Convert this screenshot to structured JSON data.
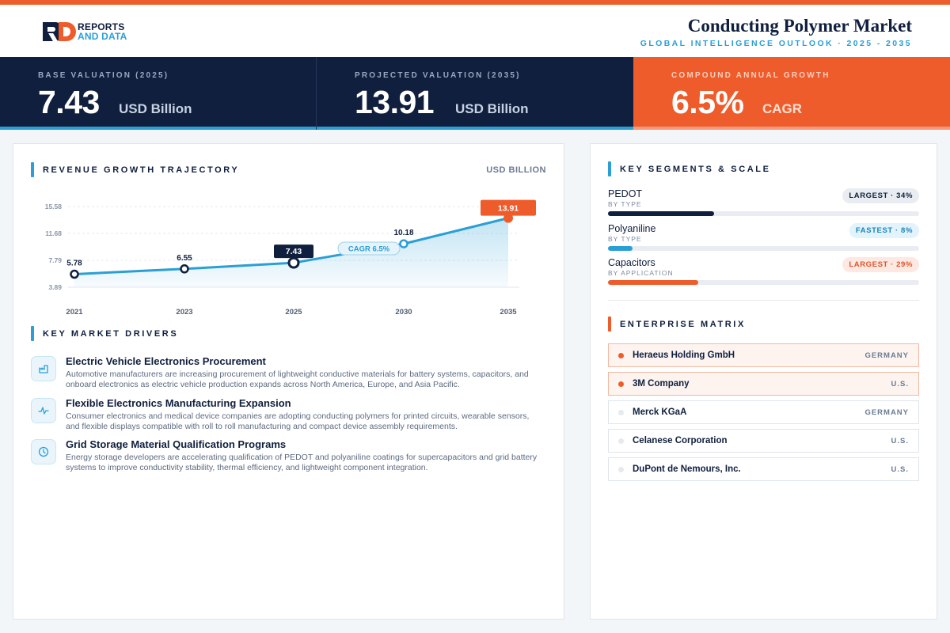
{
  "brand": {
    "logo_line1": "REPORTS",
    "logo_line2": "AND DATA"
  },
  "header": {
    "title": "Conducting Polymer Market",
    "subtitle": "GLOBAL INTELLIGENCE OUTLOOK  ·  2025 - 2035"
  },
  "kpis": [
    {
      "label": "BASE VALUATION (2025)",
      "value": "7.43",
      "unit": "USD Billion"
    },
    {
      "label": "PROJECTED VALUATION (2035)",
      "value": "13.91",
      "unit": "USD Billion"
    },
    {
      "label": "COMPOUND ANNUAL GROWTH",
      "value": "6.5%",
      "unit": "CAGR"
    }
  ],
  "chart_section": {
    "title": "REVENUE GROWTH TRAJECTORY",
    "unit": "USD BILLION"
  },
  "chart_data": {
    "type": "area",
    "title": "REVENUE GROWTH TRAJECTORY",
    "ylabel": "USD BILLION",
    "categories": [
      "2021",
      "2023",
      "2025",
      "2030",
      "2035"
    ],
    "values": [
      5.78,
      6.55,
      7.43,
      10.18,
      13.91
    ],
    "value_labels": [
      "5.78",
      "6.55",
      "7.43",
      "10.18",
      "13.91"
    ],
    "y_ticks": [
      "15.58",
      "11.68",
      "7.79",
      "3.89"
    ],
    "y_tick_values": [
      15.58,
      11.68,
      7.79,
      3.89
    ],
    "ylim": [
      3.89,
      15.58
    ],
    "highlight": {
      "base": "2025",
      "projected": "2035"
    },
    "annotation": "CAGR 6.5%",
    "grid": true,
    "colors": {
      "line": "#2a9fd6",
      "fill": "#d9edf9",
      "highlight": "#ef5c2b",
      "base_badge": "#0f1f3d"
    }
  },
  "drivers_section": {
    "title": "KEY MARKET DRIVERS"
  },
  "drivers": [
    {
      "icon": "factory-icon",
      "title": "Electric Vehicle Electronics Procurement",
      "desc": "Automotive manufacturers are increasing procurement of lightweight conductive materials for battery systems, capacitors, and onboard electronics as electric vehicle production expands across North America, Europe, and Asia Pacific."
    },
    {
      "icon": "pulse-icon",
      "title": "Flexible Electronics Manufacturing Expansion",
      "desc": "Consumer electronics and medical device companies are adopting conducting polymers for printed circuits, wearable sensors, and flexible displays compatible with roll to roll manufacturing and compact device assembly requirements."
    },
    {
      "icon": "clock-icon",
      "title": "Grid Storage Material Qualification Programs",
      "desc": "Energy storage developers are accelerating qualification of PEDOT and polyaniline coatings for supercapacitors and grid battery systems to improve conductivity stability, thermal efficiency, and lightweight component integration."
    }
  ],
  "segments_section": {
    "title": "KEY SEGMENTS & SCALE"
  },
  "segments": [
    {
      "name": "PEDOT",
      "category": "BY TYPE",
      "badge": "LARGEST · 34%",
      "share": 34,
      "color": "#0f1f3d",
      "badge_bg": "#e9edf2",
      "badge_fg": "#0f1f3d"
    },
    {
      "name": "Polyaniline",
      "category": "BY TYPE",
      "badge": "FASTEST · 8%",
      "share": 8,
      "color": "#2a9fd6",
      "badge_bg": "#e3f3fb",
      "badge_fg": "#1c84b8"
    },
    {
      "name": "Capacitors",
      "category": "BY APPLICATION",
      "badge": "LARGEST · 29%",
      "share": 29,
      "color": "#ef5c2b",
      "badge_bg": "#fde9e1",
      "badge_fg": "#e0532a"
    }
  ],
  "matrix_section": {
    "title": "ENTERPRISE MATRIX"
  },
  "companies": [
    {
      "name": "Heraeus Holding GmbH",
      "country": "GERMANY",
      "highlight": true
    },
    {
      "name": "3M Company",
      "country": "U.S.",
      "highlight": true
    },
    {
      "name": "Merck KGaA",
      "country": "GERMANY",
      "highlight": false
    },
    {
      "name": "Celanese Corporation",
      "country": "U.S.",
      "highlight": false
    },
    {
      "name": "DuPont de Nemours, Inc.",
      "country": "U.S.",
      "highlight": false
    }
  ]
}
